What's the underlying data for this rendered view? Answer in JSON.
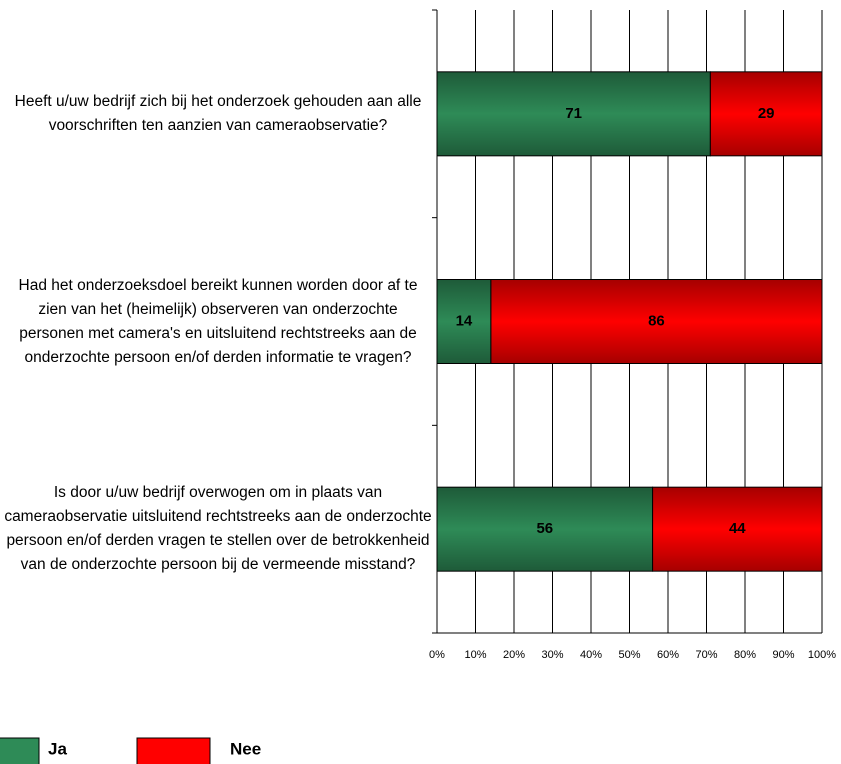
{
  "chart_data": {
    "type": "stacked-bar-horizontal",
    "categories": [
      "Heeft u/uw bedrijf zich bij het onderzoek gehouden aan alle voorschriften ten aanzien van cameraobservatie?",
      "Had het onderzoeksdoel bereikt kunnen worden door af te zien van het (heimelijk) observeren van onderzochte personen met camera's en uitsluitend rechtstreeks aan de onderzochte persoon en/of derden informatie te vragen?",
      "Is door u/uw bedrijf overwogen om in plaats van cameraobservatie uitsluitend rechtstreeks aan de onderzochte persoon en/of derden vragen te stellen over de betrokkenheid van de onderzochte persoon bij de vermeende misstand?"
    ],
    "series": [
      {
        "name": "Ja",
        "color": "#2e8b57",
        "values": [
          71,
          14,
          56
        ]
      },
      {
        "name": "Nee",
        "color": "#ff0000",
        "values": [
          29,
          86,
          44
        ]
      }
    ],
    "xlim": [
      0,
      100
    ],
    "xticks": [
      {
        "value": 0,
        "label": "0%"
      },
      {
        "value": 10,
        "label": "10%"
      },
      {
        "value": 20,
        "label": "20%"
      },
      {
        "value": 30,
        "label": "30%"
      },
      {
        "value": 40,
        "label": "40%"
      },
      {
        "value": 50,
        "label": "50%"
      },
      {
        "value": 60,
        "label": "60%"
      },
      {
        "value": 70,
        "label": "70%"
      },
      {
        "value": 80,
        "label": "80%"
      },
      {
        "value": 90,
        "label": "90%"
      },
      {
        "value": 100,
        "label": "100%"
      }
    ],
    "grid": true,
    "legend": "bottom-left"
  }
}
